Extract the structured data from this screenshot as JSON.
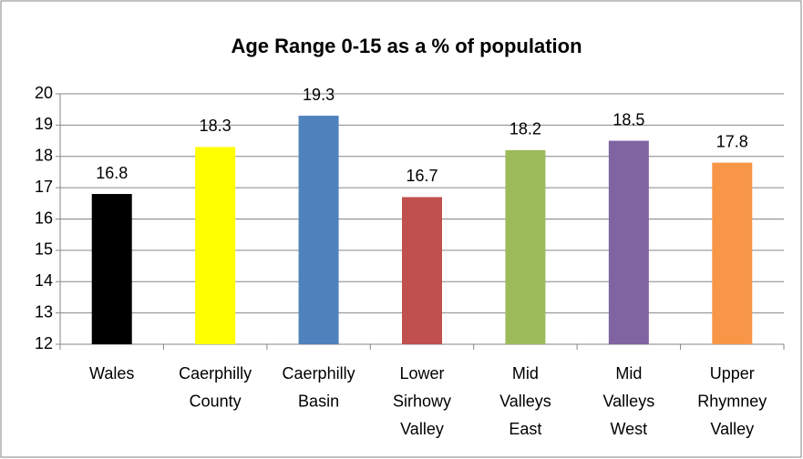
{
  "chart_data": {
    "type": "bar",
    "title": "Age Range 0-15 as a % of population",
    "categories": [
      "Wales",
      "Caerphilly County",
      "Caerphilly Basin",
      "Lower Sirhowy Valley",
      "Mid Valleys East",
      "Mid Valleys West",
      "Upper Rhymney Valley"
    ],
    "values": [
      16.8,
      18.3,
      19.3,
      16.7,
      18.2,
      18.5,
      17.8
    ],
    "colors": [
      "#000000",
      "#ffff00",
      "#4f81bd",
      "#c0504d",
      "#9bbb59",
      "#8064a2",
      "#f79646"
    ],
    "ylim": [
      12,
      20
    ],
    "yticks": [
      12,
      13,
      14,
      15,
      16,
      17,
      18,
      19,
      20
    ],
    "grid": true
  }
}
